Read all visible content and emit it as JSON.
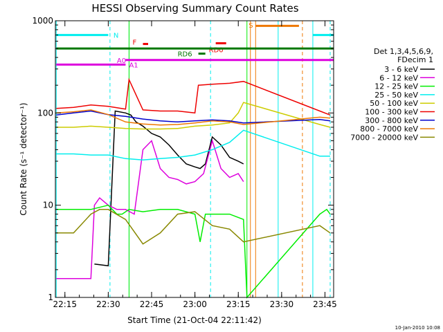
{
  "chart_data": {
    "type": "line",
    "title": "HESSI Observing Summary Count Rates",
    "xlabel": "Start Time (21-Oct-04 22:11:42)",
    "ylabel": "Count Rate (s⁻¹ detector⁻¹)",
    "yscale": "log",
    "ylim": [
      1,
      1000
    ],
    "xlim": [
      22.195,
      23.8
    ],
    "x_tick_labels": [
      "22:15",
      "22:30",
      "22:45",
      "23:00",
      "23:15",
      "23:30",
      "23:45"
    ],
    "x_ticks": [
      22.25,
      22.5,
      22.75,
      23.0,
      23.25,
      23.5,
      23.75
    ],
    "y_tick_labels": [
      "1",
      "10",
      "100",
      "1000"
    ],
    "y_ticks": [
      1,
      10,
      100,
      1000
    ],
    "legend_title": [
      "Det 1,3,4,5,6,9,",
      "FDecim 1"
    ],
    "legend_position": "right",
    "series": [
      {
        "name": "3 - 6 keV",
        "color": "#000000",
        "x": [
          22.42,
          22.5,
          22.54,
          22.6,
          22.63,
          22.66,
          22.7,
          22.75,
          22.8,
          22.85,
          22.9,
          22.95,
          23.0,
          23.03,
          23.06,
          23.1,
          23.15,
          23.2,
          23.25,
          23.28
        ],
        "y": [
          2.3,
          2.2,
          105,
          100,
          95,
          80,
          72,
          60,
          55,
          45,
          35,
          28,
          26,
          25,
          28,
          55,
          45,
          33,
          30,
          28
        ]
      },
      {
        "name": "6 - 12 keV",
        "color": "#dd00dd",
        "x": [
          22.2,
          22.3,
          22.4,
          22.42,
          22.45,
          22.5,
          22.55,
          22.6,
          22.65,
          22.7,
          22.75,
          22.8,
          22.85,
          22.9,
          22.95,
          23.0,
          23.05,
          23.1,
          23.15,
          23.2,
          23.25,
          23.28
        ],
        "y": [
          1.6,
          1.6,
          1.6,
          10,
          12,
          10,
          9,
          9,
          8,
          40,
          50,
          25,
          20,
          19,
          17,
          18,
          22,
          50,
          25,
          20,
          22,
          18
        ]
      },
      {
        "name": "12 - 25 keV",
        "color": "#00ee00",
        "x": [
          22.2,
          22.3,
          22.4,
          22.5,
          22.55,
          22.58,
          22.62,
          22.7,
          22.8,
          22.9,
          23.0,
          23.03,
          23.06,
          23.1,
          23.2,
          23.28,
          23.3,
          23.72,
          23.76,
          23.78
        ],
        "y": [
          9,
          9,
          9,
          10,
          8,
          8,
          9,
          8.5,
          9,
          9,
          8,
          4,
          8,
          8,
          8,
          7,
          1,
          8,
          9,
          8
        ]
      },
      {
        "name": "25 - 50 keV",
        "color": "#00eeee",
        "x": [
          22.2,
          22.3,
          22.4,
          22.5,
          22.6,
          22.7,
          22.8,
          22.9,
          23.0,
          23.1,
          23.2,
          23.28,
          23.72,
          23.78
        ],
        "y": [
          36,
          36,
          35,
          35,
          32,
          31,
          32,
          33,
          35,
          40,
          48,
          65,
          34,
          34
        ]
      },
      {
        "name": "50 - 100 keV",
        "color": "#cccc00",
        "x": [
          22.2,
          22.3,
          22.4,
          22.5,
          22.6,
          22.7,
          22.8,
          22.9,
          23.0,
          23.1,
          23.2,
          23.25,
          23.28,
          23.72,
          23.78
        ],
        "y": [
          70,
          70,
          72,
          70,
          68,
          67,
          67,
          68,
          72,
          74,
          78,
          100,
          130,
          75,
          70
        ]
      },
      {
        "name": "100 - 300 keV",
        "color": "#ee0000",
        "x": [
          22.2,
          22.3,
          22.4,
          22.5,
          22.6,
          22.62,
          22.7,
          22.8,
          22.9,
          23.0,
          23.02,
          23.1,
          23.2,
          23.28,
          23.72,
          23.78
        ],
        "y": [
          112,
          115,
          122,
          118,
          110,
          230,
          108,
          105,
          105,
          100,
          200,
          205,
          210,
          220,
          105,
          95
        ]
      },
      {
        "name": "300 - 800 keV",
        "color": "#0000cc",
        "x": [
          22.2,
          22.3,
          22.4,
          22.5,
          22.6,
          22.7,
          22.8,
          22.9,
          23.0,
          23.1,
          23.2,
          23.28,
          23.72,
          23.78
        ],
        "y": [
          95,
          100,
          105,
          96,
          92,
          86,
          82,
          80,
          82,
          84,
          82,
          78,
          85,
          82
        ]
      },
      {
        "name": "800 - 7000 keV",
        "color": "#ee7700",
        "x": [
          22.2,
          22.3,
          22.4,
          22.5,
          22.6,
          22.7,
          22.8,
          22.9,
          23.0,
          23.1,
          23.2,
          23.28,
          23.72,
          23.78
        ],
        "y": [
          100,
          103,
          108,
          96,
          80,
          76,
          74,
          75,
          78,
          82,
          80,
          75,
          90,
          88
        ]
      },
      {
        "name": "7000 - 20000 keV",
        "color": "#888800",
        "x": [
          22.2,
          22.3,
          22.4,
          22.45,
          22.5,
          22.6,
          22.7,
          22.8,
          22.9,
          23.0,
          23.1,
          23.2,
          23.28,
          23.72,
          23.78
        ],
        "y": [
          5,
          5,
          8,
          9,
          9,
          7,
          3.8,
          5,
          8,
          8.5,
          6,
          5.5,
          4,
          6,
          5
        ]
      }
    ],
    "annotations": [
      {
        "text": "N",
        "color": "#00eeee",
        "x_start": 22.2,
        "x_end": 22.5,
        "y": 700,
        "label_x": 22.53,
        "label_y": 700
      },
      {
        "text": "F",
        "color": "#ee0000",
        "x_start": 22.7,
        "x_end": 22.73,
        "y": 560,
        "label_x": 22.64,
        "label_y": 590
      },
      {
        "text": "RD0",
        "color": "#ee0000",
        "x_start": 23.12,
        "x_end": 23.18,
        "y": 570,
        "label_x": 23.08,
        "label_y": 490
      },
      {
        "text": "RD6",
        "color": "#007700",
        "x_start": 23.02,
        "x_end": 23.06,
        "y": 440,
        "label_x": 22.9,
        "label_y": 440
      },
      {
        "text": "A0",
        "color": "#dd00dd",
        "x_start": 22.6,
        "x_end": 23.8,
        "y": 375,
        "label_x": 22.55,
        "label_y": 375
      },
      {
        "text": "A1",
        "color": "#dd00dd",
        "x_start": 22.2,
        "x_end": 22.6,
        "y": 335,
        "label_x": 22.62,
        "label_y": 335
      },
      {
        "text": "S",
        "color": "#ee7700",
        "x_start": 23.35,
        "x_end": 23.6,
        "y": 880,
        "label_x": 23.31,
        "label_y": 900
      },
      {
        "text": "",
        "color": "#007700",
        "x_start": 22.2,
        "x_end": 23.8,
        "y": 500
      },
      {
        "text": "",
        "color": "#00eeee",
        "x_start": 23.68,
        "x_end": 23.8,
        "y": 700
      }
    ],
    "vertical_lines": [
      {
        "x": 22.2,
        "color": "#00eeee",
        "dashed": false
      },
      {
        "x": 22.51,
        "color": "#00eeee",
        "dashed": true
      },
      {
        "x": 22.62,
        "color": "#00eeee",
        "dashed": false
      },
      {
        "x": 22.62,
        "color": "#00ee00",
        "dashed": false
      },
      {
        "x": 23.09,
        "color": "#00eeee",
        "dashed": true
      },
      {
        "x": 23.3,
        "color": "#00ee00",
        "dashed": false
      },
      {
        "x": 23.32,
        "color": "#ee7700",
        "dashed": false
      },
      {
        "x": 23.35,
        "color": "#ee7700",
        "dashed": false
      },
      {
        "x": 23.48,
        "color": "#00eeee",
        "dashed": false
      },
      {
        "x": 23.62,
        "color": "#ee7700",
        "dashed": true
      },
      {
        "x": 23.68,
        "color": "#00eeee",
        "dashed": false
      },
      {
        "x": 23.78,
        "color": "#00eeee",
        "dashed": true
      }
    ],
    "stamp": "10-Jan-2010 10:08"
  }
}
